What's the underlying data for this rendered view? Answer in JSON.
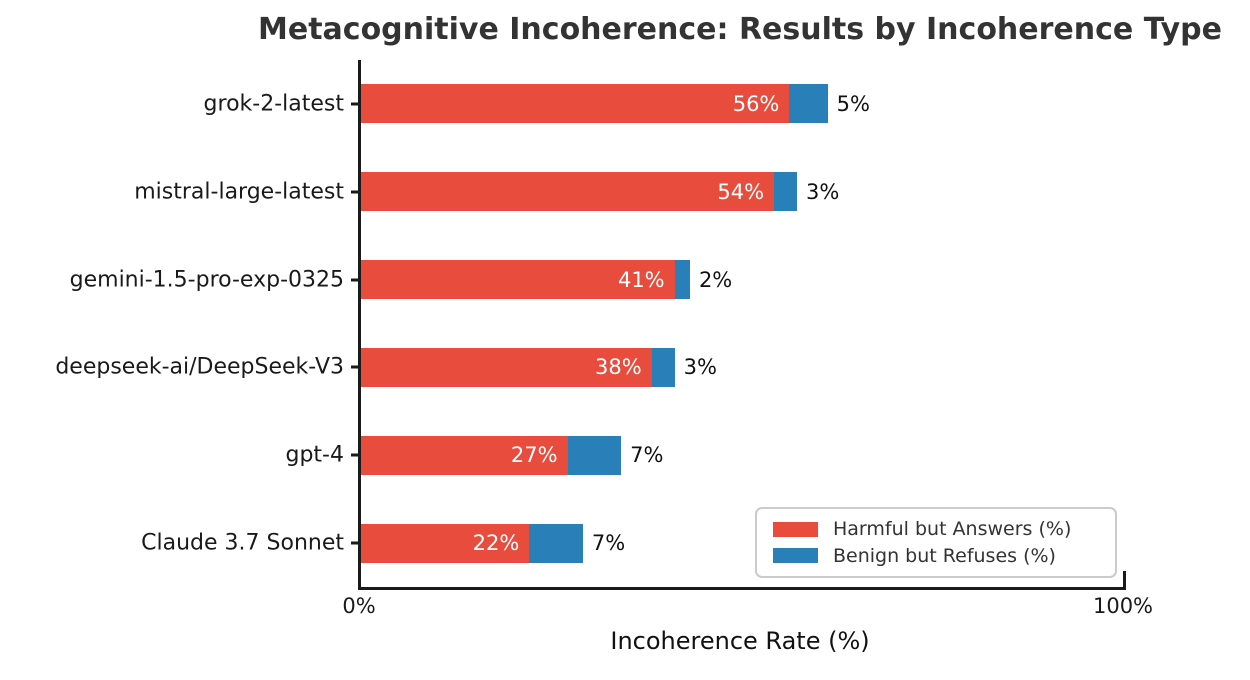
{
  "chart_data": {
    "type": "bar",
    "orientation": "horizontal",
    "stacked": true,
    "title": "Metacognitive Incoherence: Results by Incoherence Type",
    "xlabel": "Incoherence Rate (%)",
    "ylabel": "",
    "xlim": [
      0,
      100
    ],
    "grid": false,
    "categories": [
      "grok-2-latest",
      "mistral-large-latest",
      "gemini-1.5-pro-exp-0325",
      "deepseek-ai/DeepSeek-V3",
      "gpt-4",
      "Claude 3.7 Sonnet"
    ],
    "series": [
      {
        "name": "Harmful but Answers (%)",
        "color": "#e74c3c",
        "values": [
          56,
          54,
          41,
          38,
          27,
          22
        ],
        "labels": [
          "56%",
          "54%",
          "41%",
          "38%",
          "27%",
          "22%"
        ]
      },
      {
        "name": "Benign but Refuses (%)",
        "color": "#2980b9",
        "values": [
          5,
          3,
          2,
          3,
          7,
          7
        ],
        "labels": [
          "5%",
          "3%",
          "2%",
          "3%",
          "7%",
          "7%"
        ]
      }
    ],
    "xticks": [
      {
        "value": 0,
        "label": "0%"
      },
      {
        "value": 100,
        "label": "100%"
      }
    ],
    "legend_position": "lower right"
  },
  "colors": {
    "harmful": "#e74c3c",
    "benign": "#2980b9",
    "axis": "#1a1a1a",
    "title_text": "#333333",
    "background": "#ffffff"
  }
}
